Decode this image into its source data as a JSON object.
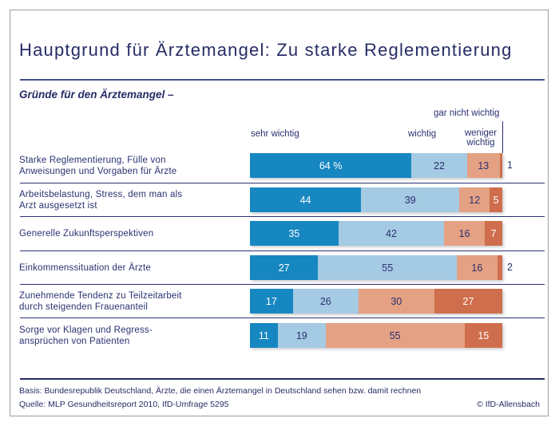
{
  "header": {
    "title": "Hauptgrund für Ärztemangel: Zu starke Reglementierung",
    "subtitle": "Gründe für den Ärztemangel –"
  },
  "chart_data": {
    "type": "bar",
    "stacked": true,
    "orientation": "horizontal",
    "xlim": [
      0,
      100
    ],
    "unit": "%",
    "value_suffix_first": " %",
    "series_labels": [
      "sehr wichtig",
      "wichtig",
      "weniger wichtig",
      "gar nicht wichtig"
    ],
    "series_colors": [
      "#1787c1",
      "#a5cae3",
      "#e4a183",
      "#cf6e4c"
    ],
    "text_on_series": [
      "#ffffff",
      "#2a3170",
      "#2a3170",
      "#ffffff"
    ],
    "categories": [
      "Starke Reglementierung, Fülle von\nAnweisungen und Vorgaben für Ärzte",
      "Arbeitsbelastung, Stress, dem man als\nArzt ausgesetzt ist",
      "Generelle Zukunftsperspektiven",
      "Einkommenssituation der Ärzte",
      "Zunehmende Tendenz zu Teilzeitarbeit\ndurch steigenden Frauenanteil",
      "Sorge vor Klagen und Regress-\nansprüchen von Patienten"
    ],
    "rows": [
      [
        64,
        22,
        13,
        1
      ],
      [
        44,
        39,
        12,
        5
      ],
      [
        35,
        42,
        16,
        7
      ],
      [
        27,
        55,
        16,
        2
      ],
      [
        17,
        26,
        30,
        27
      ],
      [
        11,
        19,
        55,
        15
      ]
    ]
  },
  "footer": {
    "basis": "Basis: Bundesrepublik Deutschland, Ärzte, die einen Ärztemangel in Deutschland sehen bzw. damit rechnen",
    "quelle": "Quelle: MLP Gesundheitsreport 2010, IfD-Umfrage 5295",
    "copyright": "© IfD-Allensbach"
  }
}
